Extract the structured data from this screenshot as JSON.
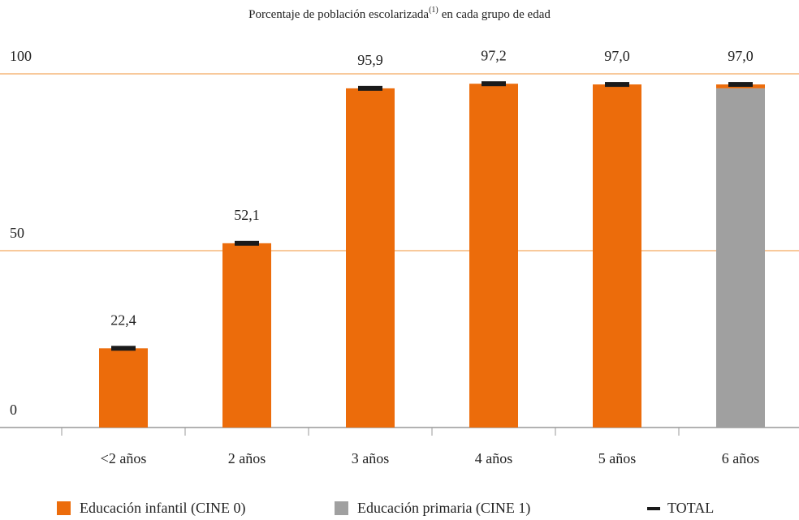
{
  "chart_data": {
    "type": "stacked_bar",
    "title": "Porcentaje de población escolarizada",
    "title_note": "(1)",
    "title_end": "en cada grupo de edad",
    "categories": [
      "<2 años",
      "2 años",
      "3 años",
      "4 años",
      "5 años",
      "6 años"
    ],
    "series": [
      {
        "name": "Educación infantil (CINE 0)",
        "color": "#ec6c0b",
        "values": [
          22.4,
          52.1,
          95.9,
          97.2,
          97.0,
          1.1
        ]
      },
      {
        "name": "Educación primaria (CINE 1)",
        "color": "#a0a0a0",
        "values": [
          0,
          0,
          0,
          0,
          0,
          95.9
        ]
      },
      {
        "name": "TOTAL",
        "color": "#1a1a1a",
        "marker": true,
        "values": [
          22.4,
          52.1,
          95.9,
          97.2,
          97.0,
          97.0
        ],
        "value_labels": [
          "22,4",
          "52,1",
          "95,9",
          "97,2",
          "97,0",
          "97,0"
        ]
      }
    ],
    "ylim": [
      0,
      100
    ],
    "yticks": [
      0,
      50,
      100
    ],
    "grid": true,
    "grid_color": "#f5b77a"
  }
}
